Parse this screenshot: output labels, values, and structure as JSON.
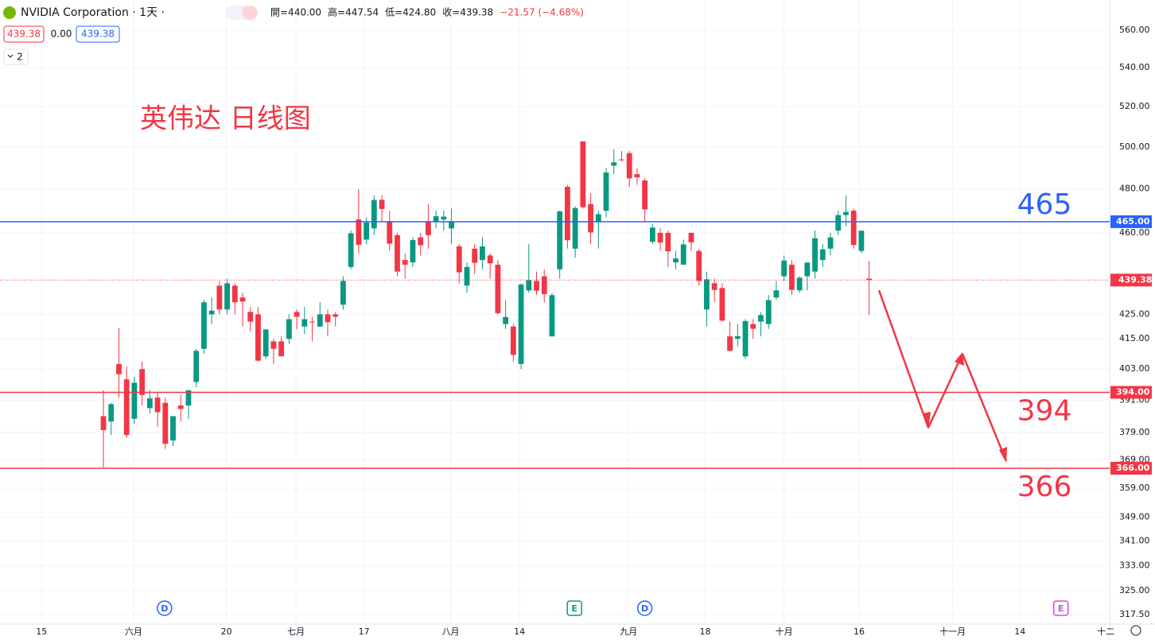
{
  "chart_data": {
    "type": "candlestick",
    "symbol": "NVIDIA Corporation · 1天 ·",
    "ohlc_text": [
      "開=440.00",
      "高=447.54",
      "低=424.80",
      "收=439.38",
      "−21.57 (−4.68%)"
    ],
    "price_boxes": [
      "439.38",
      "0.00",
      "439.38"
    ],
    "layout_count": "2",
    "title": "英伟达 日线图",
    "log_y": true,
    "grid": true,
    "up_color": "#089981",
    "down_color": "#f23645",
    "ylim": [
      314.6,
      576.7
    ],
    "yticks": [
      {
        "value": 560,
        "label": "560.00"
      },
      {
        "value": 540,
        "label": "540.00"
      },
      {
        "value": 520,
        "label": "520.00"
      },
      {
        "value": 500,
        "label": "500.00"
      },
      {
        "value": 480,
        "label": "480.00"
      },
      {
        "value": 460,
        "label": "460.00"
      },
      {
        "value": 425,
        "label": "425.00"
      },
      {
        "value": 415,
        "label": "415.00"
      },
      {
        "value": 403,
        "label": "403.00"
      },
      {
        "value": 391,
        "label": "391.00"
      },
      {
        "value": 379,
        "label": "379.00"
      },
      {
        "value": 369,
        "label": "369.00"
      },
      {
        "value": 359,
        "label": "359.00"
      },
      {
        "value": 349,
        "label": "349.00"
      },
      {
        "value": 341,
        "label": "341.00"
      },
      {
        "value": 333,
        "label": "333.00"
      },
      {
        "value": 325,
        "label": "325.00"
      },
      {
        "value": 317.5,
        "label": "317.50"
      }
    ],
    "xlim": [
      -13.37,
      130.1
    ],
    "xticks": [
      {
        "value": -8,
        "label": "15"
      },
      {
        "value": 3.9,
        "label": "六月"
      },
      {
        "value": 15.9,
        "label": "20"
      },
      {
        "value": 24.9,
        "label": "七月"
      },
      {
        "value": 33.7,
        "label": "17"
      },
      {
        "value": 44.9,
        "label": "八月"
      },
      {
        "value": 53.8,
        "label": "14"
      },
      {
        "value": 67.9,
        "label": "九月"
      },
      {
        "value": 77.8,
        "label": "18"
      },
      {
        "value": 88,
        "label": "十月"
      },
      {
        "value": 97.7,
        "label": "16"
      },
      {
        "value": 109.8,
        "label": "十一月"
      },
      {
        "value": 118.5,
        "label": "14"
      },
      {
        "value": 129.6,
        "label": "十二"
      }
    ],
    "x": [
      0,
      1,
      2,
      3,
      4,
      5,
      6,
      7,
      8,
      9,
      10,
      11,
      12,
      13,
      14,
      15,
      16,
      17,
      18,
      19,
      20,
      21,
      22,
      23,
      24,
      25,
      26,
      27,
      28,
      29,
      30,
      31,
      32,
      33,
      34,
      35,
      36,
      37,
      38,
      39,
      40,
      41,
      42,
      43,
      44,
      45,
      46,
      47,
      48,
      49,
      50,
      51,
      52,
      53,
      54,
      55,
      56,
      57,
      58,
      59,
      60,
      61,
      62,
      63,
      64,
      65,
      66,
      67,
      68,
      69,
      70,
      71,
      72,
      73,
      74,
      75,
      76,
      77,
      78,
      79,
      80,
      81,
      82,
      83,
      84,
      85,
      86,
      87,
      88,
      89,
      90,
      91,
      92,
      93,
      94,
      95,
      96,
      97,
      98,
      99
    ],
    "open": [
      385,
      383,
      405,
      399,
      384,
      403,
      388,
      392,
      390,
      376,
      389,
      389,
      398,
      411,
      425,
      437,
      427,
      437,
      432,
      426,
      425,
      408,
      414,
      414,
      415,
      426,
      420,
      422,
      420,
      425,
      425,
      429,
      445,
      466,
      457,
      462,
      475,
      465,
      459,
      448,
      447,
      458,
      465,
      465,
      466,
      462,
      454,
      437,
      453,
      448,
      450,
      446,
      421,
      420,
      405,
      435,
      439,
      441,
      416,
      444,
      481,
      453,
      502.7,
      473,
      465,
      470,
      491,
      494,
      497,
      487,
      484,
      456,
      460,
      460,
      447,
      446,
      460,
      452,
      427,
      438,
      436,
      416,
      415,
      408,
      421,
      422,
      421,
      432,
      441,
      446,
      435,
      441,
      443,
      448,
      453,
      461,
      468,
      470,
      452,
      440
    ],
    "high": [
      394.8,
      390,
      419.4,
      404,
      400,
      406,
      395,
      394,
      392,
      385,
      393,
      395,
      411,
      431,
      432,
      439,
      440,
      438,
      434,
      428,
      428,
      419,
      415,
      416,
      425,
      427,
      428,
      424,
      430,
      427,
      426,
      441,
      461,
      480,
      467,
      477,
      477,
      470,
      460,
      451,
      458,
      460,
      473,
      470,
      470,
      471,
      455,
      447,
      455,
      458,
      451,
      448,
      431,
      421,
      437.9,
      455,
      443,
      444,
      434,
      470,
      482,
      472,
      502.7,
      478,
      470,
      490,
      499,
      498,
      498,
      490,
      485,
      464,
      462,
      461,
      452,
      457,
      460,
      453,
      443,
      440,
      438,
      422,
      421,
      423,
      423,
      426,
      433,
      439,
      450,
      448,
      441,
      447,
      461,
      455,
      460,
      470,
      477,
      471,
      461,
      447.54
    ],
    "low": [
      366.3,
      378,
      392,
      377,
      382,
      389,
      386,
      381,
      373,
      374,
      383,
      384,
      396,
      409,
      421,
      425,
      425,
      425,
      420,
      418,
      406,
      407,
      405,
      408,
      413,
      419,
      417,
      414,
      420,
      416,
      420,
      427,
      444,
      451,
      455,
      459,
      465,
      452,
      441,
      440,
      445,
      450,
      453,
      462,
      461,
      455,
      438,
      434,
      442,
      444,
      440,
      425,
      419,
      406,
      403,
      434,
      433,
      430,
      416,
      440,
      453,
      449,
      471,
      455,
      453,
      467,
      487,
      493,
      481,
      482,
      465,
      455,
      452,
      445,
      444,
      446,
      452,
      437,
      420,
      430,
      422,
      410,
      412,
      407,
      415,
      416,
      419,
      431,
      439,
      433,
      434,
      435,
      440,
      445,
      450,
      459,
      463,
      453,
      451,
      424.8
    ],
    "close": [
      379.8,
      389.5,
      401,
      378,
      397.7,
      393,
      391.7,
      386.5,
      374.8,
      385,
      387.7,
      394.8,
      410.2,
      430,
      426.5,
      427,
      438,
      430,
      430.3,
      422,
      406.3,
      418.8,
      411,
      408,
      423,
      424,
      423,
      421.8,
      425,
      421.8,
      424,
      439,
      459.8,
      454.7,
      464.6,
      474.9,
      470.8,
      455.2,
      443,
      446,
      456.8,
      454.5,
      459,
      467.5,
      467.3,
      465,
      442.7,
      445,
      446.8,
      454,
      446.6,
      425.5,
      423.9,
      408.6,
      437.5,
      439.4,
      434.9,
      433.4,
      433,
      469.7,
      456.7,
      471.2,
      471.6,
      460.2,
      468.4,
      487.8,
      492.6,
      493.6,
      485,
      485.5,
      470.6,
      462.4,
      455.7,
      451.8,
      448.7,
      454.85,
      455.8,
      439,
      439.7,
      435.2,
      422.4,
      410.2,
      416.1,
      422.2,
      419.1,
      424.7,
      430.9,
      434.99,
      447.8,
      435.2,
      440.4,
      446.9,
      457.6,
      452.7,
      457.98,
      468,
      469.45,
      454.6,
      460.95,
      439.38
    ],
    "levels": [
      {
        "value": 465,
        "axis_label": "465.00",
        "annotation": "465",
        "color": "#2962ff"
      },
      {
        "value": 394,
        "axis_label": "394.00",
        "annotation": "394",
        "color": "#f23645"
      },
      {
        "value": 366,
        "axis_label": "366.00",
        "annotation": "366",
        "color": "#f23645"
      }
    ],
    "last_price": {
      "value": 439.38,
      "label": "439.38",
      "color": "#f23645"
    },
    "events": [
      {
        "label": "D",
        "x": 7.9,
        "color": "#2962ff"
      },
      {
        "label": "E",
        "x": 60.9,
        "color": "#089981"
      },
      {
        "label": "D",
        "x": 70,
        "color": "#2962ff"
      },
      {
        "label": "E",
        "x": 123.8,
        "color": "#d04dd9"
      }
    ]
  }
}
